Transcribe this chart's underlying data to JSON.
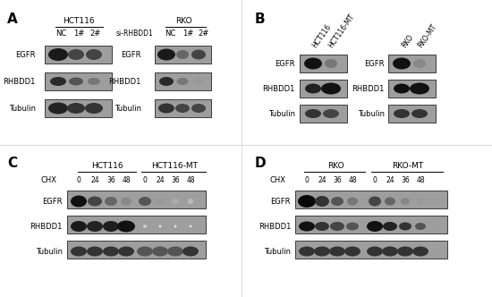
{
  "panel_A_label": "A",
  "panel_B_label": "B",
  "panel_C_label": "C",
  "panel_D_label": "D",
  "background_color": "#ffffff",
  "blot_bg": "#a0a0a0",
  "blot_bg_light": "#b8b8b8",
  "band_dark": "#2a2a2a",
  "band_medium": "#555555",
  "band_light": "#888888",
  "band_vlight": "#aaaaaa",
  "band_none": "#999999"
}
